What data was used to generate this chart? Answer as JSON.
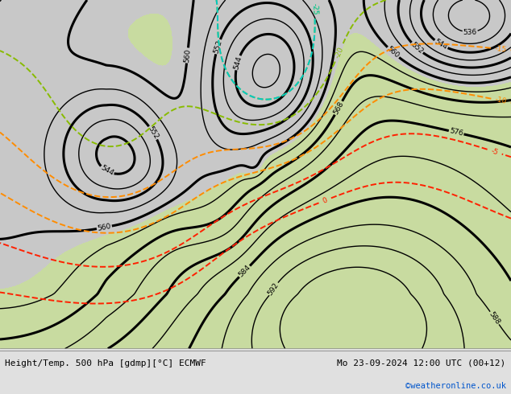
{
  "title_left": "Height/Temp. 500 hPa [gdmp][°C] ECMWF",
  "title_right": "Mo 23-09-2024 12:00 UTC (00+12)",
  "credit": "©weatheronline.co.uk",
  "bg_gray": "#c8c8c8",
  "bg_green": "#c8dba0",
  "bottom_bar_color": "#e0e0e0",
  "contour_black": "#000000",
  "contour_orange": "#ff8c00",
  "contour_cyan": "#00c8c8",
  "contour_red": "#ff2000",
  "contour_green": "#88bb00",
  "figsize": [
    6.34,
    4.9
  ],
  "dpi": 100
}
